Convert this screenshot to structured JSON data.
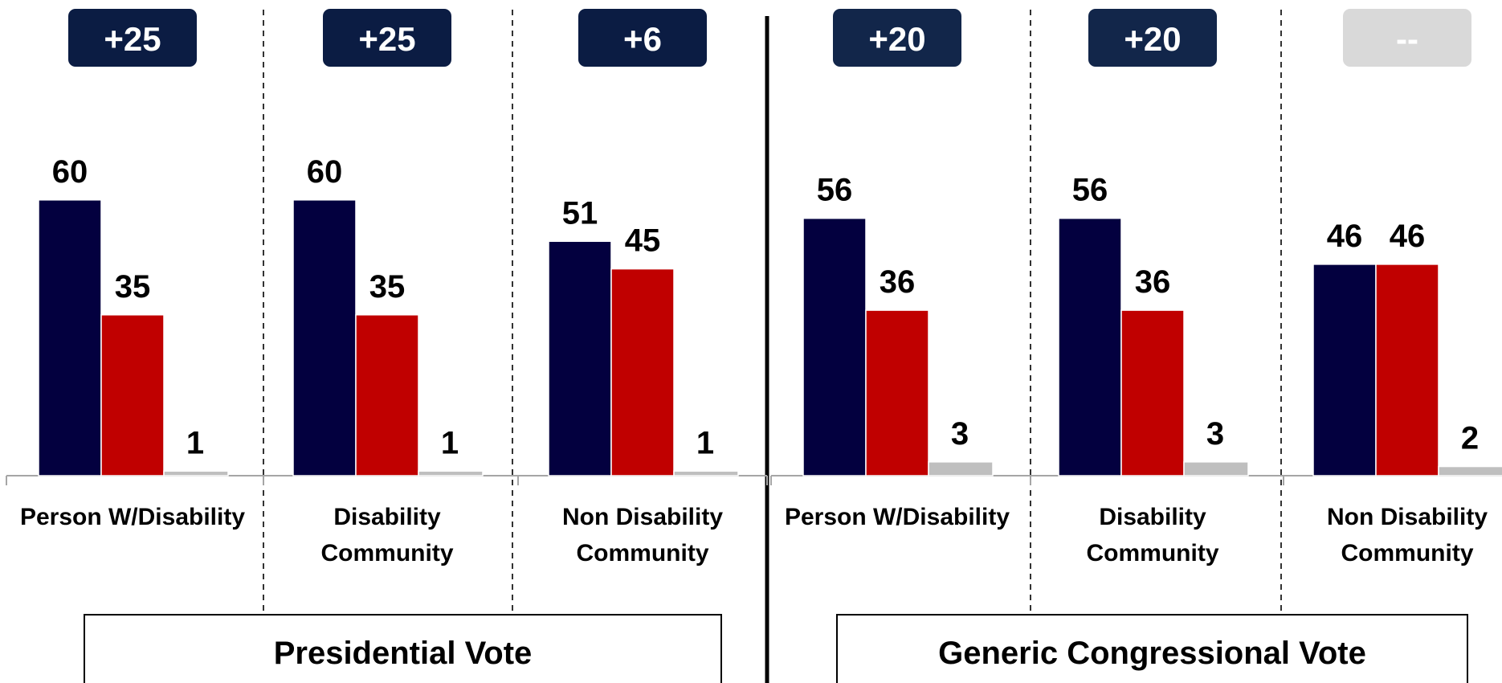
{
  "chart_data": [
    {
      "type": "bar",
      "title": "Presidential Vote",
      "categories": [
        "Person W/Disability",
        "Disability Community",
        "Non Disability Community"
      ],
      "series": [
        {
          "values": [
            60,
            60,
            51
          ],
          "color": "#03003f"
        },
        {
          "values": [
            35,
            35,
            45
          ],
          "color": "#c00000"
        },
        {
          "values": [
            1,
            1,
            1
          ],
          "color": "#bfbfbf"
        }
      ],
      "margins": [
        "+25",
        "+25",
        "+6"
      ],
      "ylim": [
        0,
        70
      ],
      "grid": false
    },
    {
      "type": "bar",
      "title": "Generic Congressional Vote",
      "categories": [
        "Person W/Disability",
        "Disability Community",
        "Non Disability Community"
      ],
      "series": [
        {
          "values": [
            56,
            56,
            46
          ],
          "color": "#03003f"
        },
        {
          "values": [
            36,
            36,
            46
          ],
          "color": "#c00000"
        },
        {
          "values": [
            3,
            3,
            2
          ],
          "color": "#bfbfbf"
        }
      ],
      "margins": [
        "+20",
        "+20",
        "--"
      ],
      "ylim": [
        0,
        70
      ],
      "grid": false
    }
  ],
  "colors": {
    "margin_box": "#0b1c43",
    "margin_box_alt": "#12264a",
    "margin_box_empty": "#d9d9d9",
    "axis": "#a6a6a6"
  },
  "category_label_lines": {
    "Person W/Disability": [
      "Person W/Disability"
    ],
    "Disability Community": [
      "Disability",
      "Community"
    ],
    "Non Disability Community": [
      "Non Disability",
      "Community"
    ]
  }
}
